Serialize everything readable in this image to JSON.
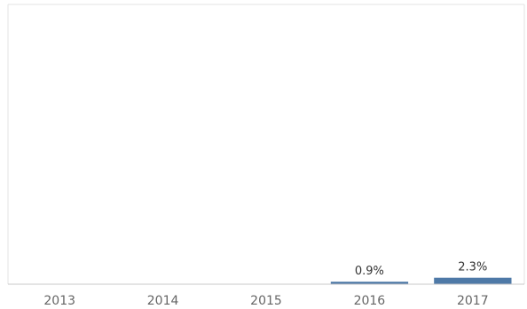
{
  "chart_data": {
    "type": "bar",
    "categories": [
      "2013",
      "2014",
      "2015",
      "2016",
      "2017"
    ],
    "values": [
      0,
      0,
      0,
      0.9,
      2.3
    ],
    "data_labels": [
      "",
      "",
      "",
      "0.9%",
      "2.3%"
    ],
    "ylim": [
      0,
      100
    ],
    "grid": false,
    "legend": "none",
    "bar_color": "#4e79a7",
    "axis_color": "#c8c8c8",
    "frame_color": "#e3e3e3"
  }
}
